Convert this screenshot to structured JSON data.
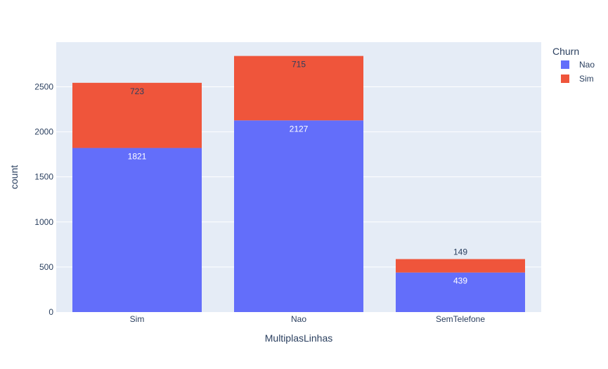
{
  "chart_data": {
    "type": "bar",
    "barmode": "stack",
    "categories": [
      "Sim",
      "Nao",
      "SemTelefone"
    ],
    "series": [
      {
        "name": "Nao",
        "values": [
          1821,
          2127,
          439
        ],
        "color": "#636efa",
        "label_color": "#ffffff"
      },
      {
        "name": "Sim",
        "values": [
          723,
          715,
          149
        ],
        "color": "#ef553b",
        "label_color": "#2a3f5f"
      }
    ],
    "xlabel": "MultiplasLinhas",
    "ylabel": "count",
    "ylim": [
      0,
      2995
    ],
    "yticks": [
      0,
      500,
      1000,
      1500,
      2000,
      2500
    ],
    "legend": {
      "title": "Churn",
      "placement": "top-right"
    },
    "grid": true,
    "plot_background": "#e5ecf6"
  }
}
